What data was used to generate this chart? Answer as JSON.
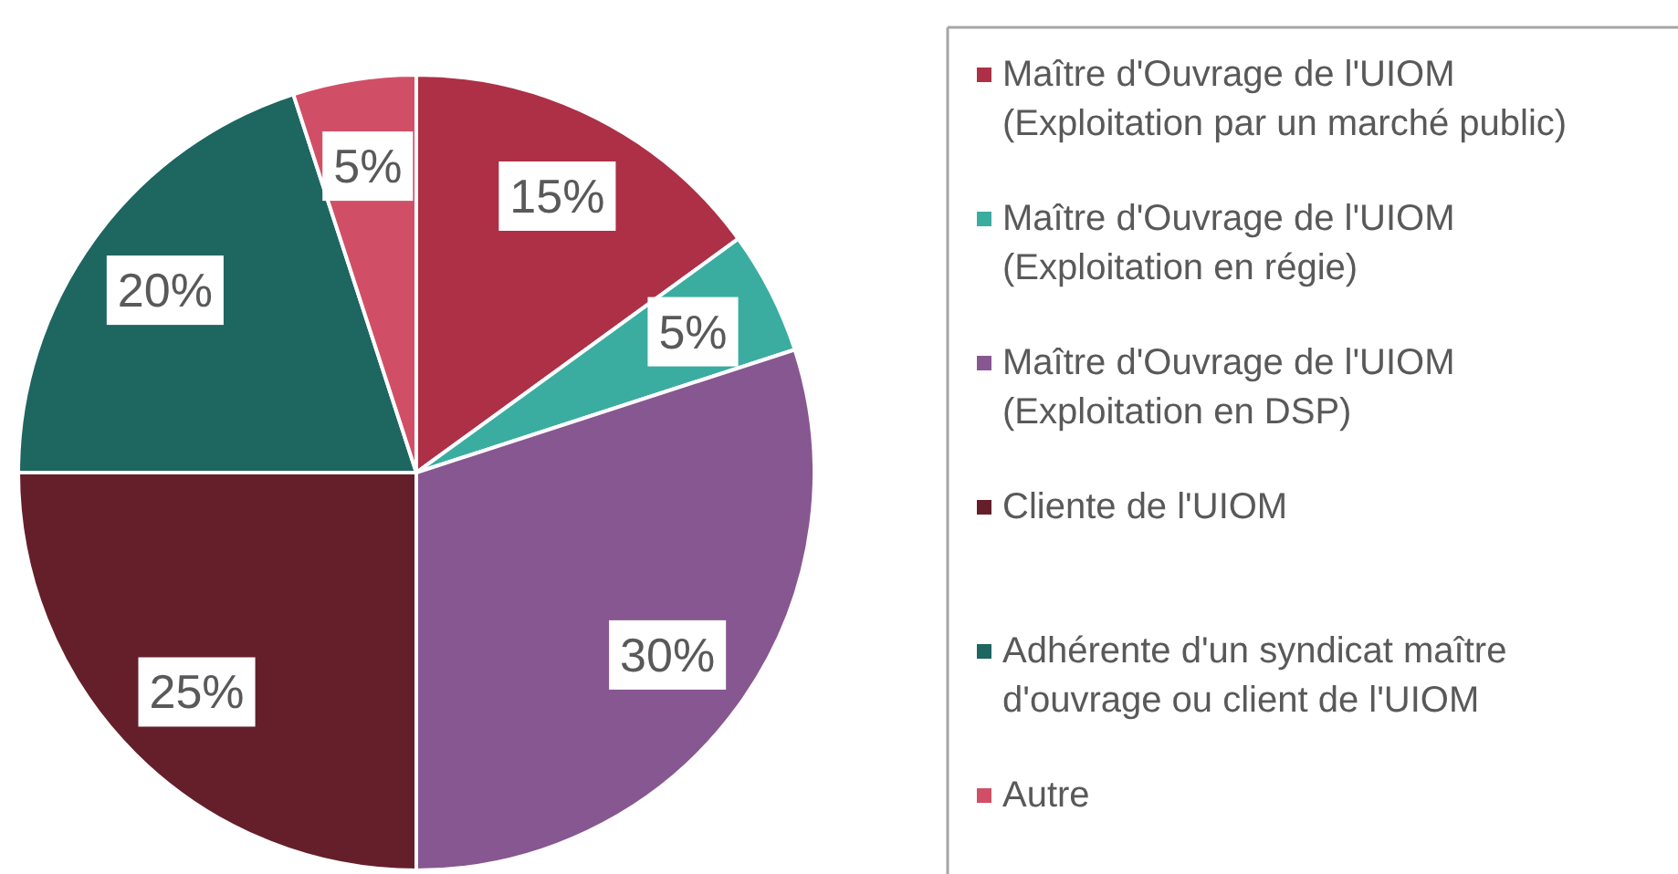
{
  "chart_data": {
    "type": "pie",
    "categories": [
      "Maître d'Ouvrage de l'UIOM (Exploitation par un marché public)",
      "Maître d'Ouvrage de l'UIOM (Exploitation en régie)",
      "Maître d'Ouvrage de l'UIOM (Exploitation en DSP)",
      "Cliente de l'UIOM",
      "Adhérente d'un syndicat maître d'ouvrage ou client de l'UIOM",
      "Autre"
    ],
    "values": [
      15,
      5,
      30,
      25,
      20,
      5
    ],
    "colors": [
      "#ad3047",
      "#3aada0",
      "#875791",
      "#651f2b",
      "#1e6660",
      "#d04f67"
    ],
    "value_labels": [
      "15%",
      "5%",
      "30%",
      "25%",
      "20%",
      "5%"
    ],
    "legend": "right"
  }
}
